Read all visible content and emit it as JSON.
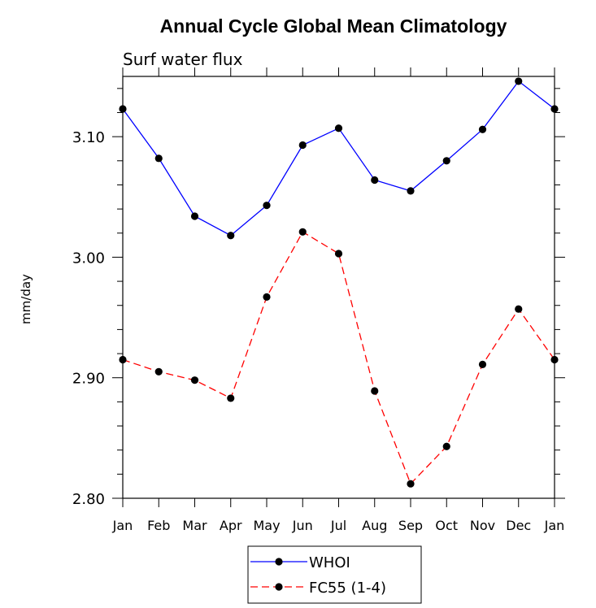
{
  "chart_data": {
    "type": "line",
    "title": "Annual Cycle Global Mean Climatology",
    "subtitle": "Surf water flux",
    "xlabel": "",
    "ylabel": "mm/day",
    "categories": [
      "Jan",
      "Feb",
      "Mar",
      "Apr",
      "May",
      "Jun",
      "Jul",
      "Aug",
      "Sep",
      "Oct",
      "Nov",
      "Dec",
      "Jan"
    ],
    "ylim": [
      2.8,
      3.15
    ],
    "yticks": [
      2.8,
      2.9,
      3.0,
      3.1
    ],
    "ytick_labels": [
      "2.80",
      "2.90",
      "3.00",
      "3.10"
    ],
    "grid": false,
    "legend_position": "bottom-center",
    "series": [
      {
        "name": "WHOI",
        "color": "#0000ff",
        "dash": "solid",
        "marker": "circle",
        "values": [
          3.123,
          3.082,
          3.034,
          3.018,
          3.043,
          3.093,
          3.107,
          3.064,
          3.055,
          3.08,
          3.106,
          3.146,
          3.123
        ]
      },
      {
        "name": "FC55 (1-4)",
        "color": "#ff0000",
        "dash": "dashed",
        "marker": "circle",
        "values": [
          2.915,
          2.905,
          2.898,
          2.883,
          2.967,
          3.021,
          3.003,
          2.889,
          2.812,
          2.843,
          2.911,
          2.957,
          2.915
        ]
      }
    ]
  }
}
